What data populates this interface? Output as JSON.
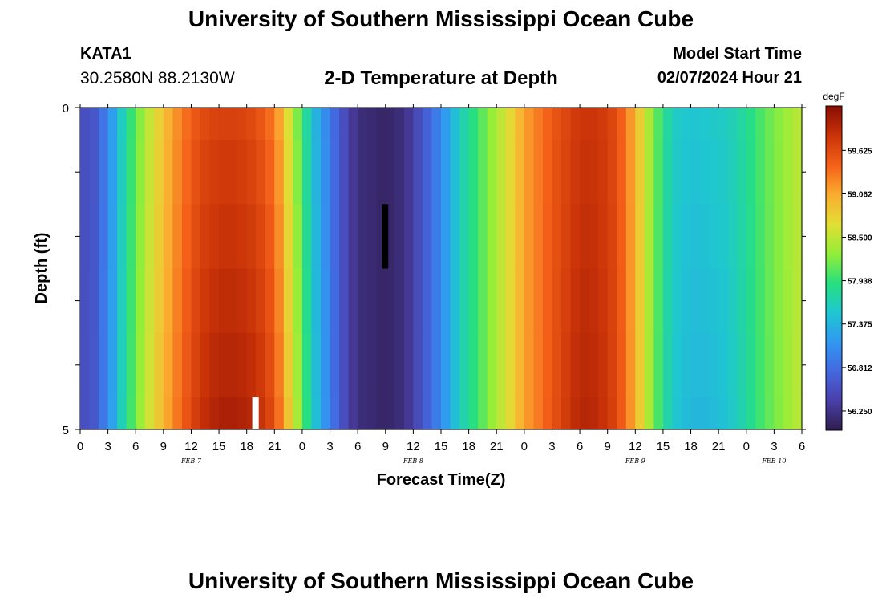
{
  "header": {
    "title": "University of Southern Mississippi Ocean Cube",
    "station_id": "KATA1",
    "coordinates": "30.2580N  88.2130W",
    "subtitle": "2-D Temperature at Depth",
    "model_start_label": "Model Start Time",
    "model_start_value": "02/07/2024 Hour 21"
  },
  "footer": {
    "title": "University of Southern Mississippi Ocean Cube"
  },
  "chart_data": {
    "type": "heatmap",
    "title": "2-D Temperature at Depth",
    "xlabel": "Forecast Time(Z)",
    "ylabel": "Depth (ft)",
    "x_tick_labels": [
      "0",
      "3",
      "6",
      "9",
      "12",
      "15",
      "18",
      "21",
      "0",
      "3",
      "6",
      "9",
      "12",
      "15",
      "18",
      "21",
      "0",
      "3",
      "6",
      "9",
      "12",
      "15",
      "18",
      "21",
      "0",
      "3",
      "6"
    ],
    "date_labels": [
      {
        "label": "FEB 7",
        "hours": 12
      },
      {
        "label": "FEB 8",
        "hours": 36
      },
      {
        "label": "FEB 9",
        "hours": 60
      },
      {
        "label": "FEB 10",
        "hours": 75
      }
    ],
    "xlim_hours": [
      0,
      78
    ],
    "ylim": [
      0,
      5
    ],
    "y_tick_labels": [
      "0",
      "5"
    ],
    "colorbar": {
      "unit": "degF",
      "range": [
        56.0,
        60.2
      ],
      "ticks": [
        "59.625",
        "59.062",
        "58.500",
        "57.938",
        "57.375",
        "56.812",
        "56.250"
      ],
      "tick_values": [
        59.625,
        59.062,
        58.5,
        57.938,
        57.375,
        56.812,
        56.25
      ],
      "colors": [
        "#2f1d4d",
        "#4a3fa8",
        "#4468e0",
        "#3098f2",
        "#1fc7d0",
        "#27e07e",
        "#95ee38",
        "#e2de35",
        "#fbab30",
        "#f46018",
        "#c93308",
        "#8a0c04"
      ]
    },
    "depth_bins": [
      {
        "top": 0,
        "bottom": 0.5
      },
      {
        "top": 0.5,
        "bottom": 1.5
      },
      {
        "top": 1.5,
        "bottom": 2.5
      },
      {
        "top": 2.5,
        "bottom": 3.5
      },
      {
        "top": 3.5,
        "bottom": 4.5
      },
      {
        "top": 4.5,
        "bottom": 5
      }
    ],
    "time_step_hours": 1,
    "temperature_profile": [
      {
        "hour": 0,
        "value": 56.5
      },
      {
        "hour": 1.5,
        "value": 56.6
      },
      {
        "hour": 3,
        "value": 57.0
      },
      {
        "hour": 5,
        "value": 57.8
      },
      {
        "hour": 7,
        "value": 58.4
      },
      {
        "hour": 9,
        "value": 58.9
      },
      {
        "hour": 11,
        "value": 59.3
      },
      {
        "hour": 13,
        "value": 59.6
      },
      {
        "hour": 15,
        "value": 59.7
      },
      {
        "hour": 17,
        "value": 59.7
      },
      {
        "hour": 19,
        "value": 59.6
      },
      {
        "hour": 21,
        "value": 59.3
      },
      {
        "hour": 22,
        "value": 58.9
      },
      {
        "hour": 23,
        "value": 58.4
      },
      {
        "hour": 24,
        "value": 58.0
      },
      {
        "hour": 25,
        "value": 57.5
      },
      {
        "hour": 27,
        "value": 56.9
      },
      {
        "hour": 29,
        "value": 56.4
      },
      {
        "hour": 30,
        "value": 56.2
      },
      {
        "hour": 33,
        "value": 56.1
      },
      {
        "hour": 35,
        "value": 56.2
      },
      {
        "hour": 36,
        "value": 56.4
      },
      {
        "hour": 38,
        "value": 56.8
      },
      {
        "hour": 40,
        "value": 57.3
      },
      {
        "hour": 41,
        "value": 57.6
      },
      {
        "hour": 43,
        "value": 58.0
      },
      {
        "hour": 46,
        "value": 58.6
      },
      {
        "hour": 48,
        "value": 59.1
      },
      {
        "hour": 51,
        "value": 59.5
      },
      {
        "hour": 54,
        "value": 59.8
      },
      {
        "hour": 56,
        "value": 59.8
      },
      {
        "hour": 58,
        "value": 59.6
      },
      {
        "hour": 59,
        "value": 59.3
      },
      {
        "hour": 60,
        "value": 59.0
      },
      {
        "hour": 61,
        "value": 58.6
      },
      {
        "hour": 62,
        "value": 58.2
      },
      {
        "hour": 63,
        "value": 57.9
      },
      {
        "hour": 64,
        "value": 57.6
      },
      {
        "hour": 66,
        "value": 57.5
      },
      {
        "hour": 70,
        "value": 57.6
      },
      {
        "hour": 72,
        "value": 57.8
      },
      {
        "hour": 74,
        "value": 58.1
      },
      {
        "hour": 76,
        "value": 58.3
      },
      {
        "hour": 78,
        "value": 58.5
      }
    ],
    "depth_anomaly": [
      {
        "hour": 0,
        "deep": 0.0
      },
      {
        "hour": 10,
        "deep": 0.1
      },
      {
        "hour": 15,
        "deep": 0.3
      },
      {
        "hour": 20,
        "deep": 0.3
      },
      {
        "hour": 23,
        "deep": 0.2
      },
      {
        "hour": 28,
        "deep": 0.0
      },
      {
        "hour": 50,
        "deep": 0.0
      },
      {
        "hour": 54,
        "deep": 0.15
      },
      {
        "hour": 58,
        "deep": 0.05
      },
      {
        "hour": 64,
        "deep": -0.05
      },
      {
        "hour": 68,
        "deep": -0.15
      },
      {
        "hour": 72,
        "deep": -0.05
      },
      {
        "hour": 78,
        "deep": 0.0
      }
    ],
    "markers": [
      {
        "name": "black-bar",
        "color": "#000000",
        "hour_start": 32.6,
        "hour_end": 33.3,
        "depth_top": 1.5,
        "depth_bottom": 2.5
      },
      {
        "name": "white-bar",
        "color": "#ffffff",
        "hour_start": 18.6,
        "hour_end": 19.3,
        "depth_top": 4.5,
        "depth_bottom": 5
      }
    ]
  }
}
